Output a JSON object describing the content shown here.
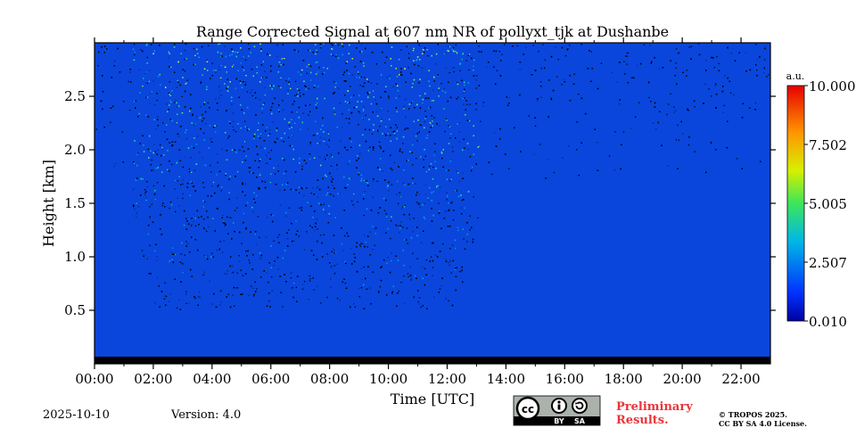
{
  "chart_data": {
    "type": "heatmap",
    "title": "Range Corrected Signal at 607 nm NR of pollyxt_tjk at Dushanbe",
    "xlabel": "Time [UTC]",
    "ylabel": "Height [km]",
    "xlim": [
      0,
      23
    ],
    "ylim": [
      0.0,
      3.0
    ],
    "x_ticks": [
      0,
      2,
      4,
      6,
      8,
      10,
      12,
      14,
      16,
      18,
      20,
      22
    ],
    "x_tick_labels": [
      "00:00",
      "02:00",
      "04:00",
      "06:00",
      "08:00",
      "10:00",
      "12:00",
      "14:00",
      "16:00",
      "18:00",
      "20:00",
      "22:00"
    ],
    "y_ticks": [
      0.5,
      1.0,
      1.5,
      2.0,
      2.5
    ],
    "y_tick_labels": [
      "0.5",
      "1.0",
      "1.5",
      "2.0",
      "2.5"
    ],
    "colorbar": {
      "unit": "a.u.",
      "min": 0.01,
      "max": 10.0,
      "tick_labels": [
        "10.000",
        "7.502",
        "5.005",
        "2.507",
        "0.010"
      ],
      "tick_values": [
        10.0,
        7.502,
        5.005,
        2.507,
        0.01
      ],
      "colormap": "jet"
    },
    "features": {
      "no_signal_height_km": [
        0.0,
        0.05
      ],
      "daytime_noise_window_hours": [
        1.3,
        13.1
      ]
    }
  },
  "footer": {
    "date": "2025-10-10",
    "version": "Version: 4.0",
    "preliminary": [
      "Preliminary",
      "Results."
    ],
    "copyright": [
      "© TROPOS 2025.",
      "CC BY SA 4.0 License."
    ],
    "license_badge": {
      "cc": "cc",
      "by": "BY",
      "sa": "SA"
    }
  }
}
